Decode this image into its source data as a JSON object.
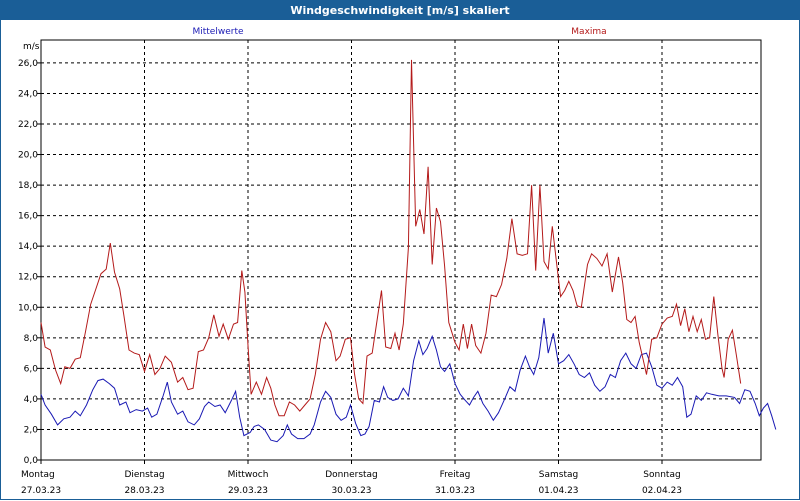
{
  "window": {
    "title": "Windgeschwindigkeit [m/s] skaliert"
  },
  "colors": {
    "mean": "#1a1ab4",
    "max": "#b41a1a",
    "titlebar": "#1a5e97",
    "grid": "#000000"
  },
  "chart_data": {
    "type": "line",
    "title": "Windgeschwindigkeit [m/s] skaliert",
    "ylabel": "m/s",
    "ylim": [
      0,
      27.5
    ],
    "yticks": [
      "0,0",
      "2,0",
      "4,0",
      "6,0",
      "8,0",
      "10,0",
      "12,0",
      "14,0",
      "16,0",
      "18,0",
      "20,0",
      "22,0",
      "24,0",
      "26,0"
    ],
    "xlim": [
      0,
      7
    ],
    "days": [
      {
        "name": "Montag",
        "date": "27.03.23"
      },
      {
        "name": "Dienstag",
        "date": "28.03.23"
      },
      {
        "name": "Mittwoch",
        "date": "29.03.23"
      },
      {
        "name": "Donnerstag",
        "date": "30.03.23"
      },
      {
        "name": "Freitag",
        "date": "31.03.23"
      },
      {
        "name": "Samstag",
        "date": "01.04.23"
      },
      {
        "name": "Sonntag",
        "date": "02.04.23"
      }
    ],
    "grid": true,
    "series": [
      {
        "name": "Mittelwerte",
        "color": "#1a1ab4",
        "points": [
          [
            0,
            4.3
          ],
          [
            0.04,
            3.6
          ],
          [
            0.1,
            3.0
          ],
          [
            0.16,
            2.3
          ],
          [
            0.22,
            2.7
          ],
          [
            0.28,
            2.8
          ],
          [
            0.33,
            3.2
          ],
          [
            0.38,
            2.9
          ],
          [
            0.44,
            3.6
          ],
          [
            0.5,
            4.6
          ],
          [
            0.55,
            5.2
          ],
          [
            0.6,
            5.3
          ],
          [
            0.66,
            5.0
          ],
          [
            0.71,
            4.7
          ],
          [
            0.76,
            3.6
          ],
          [
            0.82,
            3.8
          ],
          [
            0.86,
            3.1
          ],
          [
            0.92,
            3.3
          ],
          [
            0.98,
            3.2
          ],
          [
            1.03,
            3.4
          ],
          [
            1.07,
            2.8
          ],
          [
            1.12,
            3.0
          ],
          [
            1.18,
            4.2
          ],
          [
            1.22,
            5.1
          ],
          [
            1.26,
            3.8
          ],
          [
            1.32,
            3.0
          ],
          [
            1.37,
            3.2
          ],
          [
            1.42,
            2.5
          ],
          [
            1.48,
            2.3
          ],
          [
            1.53,
            2.7
          ],
          [
            1.58,
            3.5
          ],
          [
            1.62,
            3.8
          ],
          [
            1.68,
            3.5
          ],
          [
            1.73,
            3.6
          ],
          [
            1.78,
            3.1
          ],
          [
            1.84,
            3.9
          ],
          [
            1.88,
            4.5
          ],
          [
            1.92,
            2.8
          ],
          [
            1.96,
            1.6
          ],
          [
            2.02,
            1.8
          ],
          [
            2.06,
            2.2
          ],
          [
            2.1,
            2.3
          ],
          [
            2.16,
            2.0
          ],
          [
            2.22,
            1.3
          ],
          [
            2.28,
            1.2
          ],
          [
            2.34,
            1.6
          ],
          [
            2.38,
            2.3
          ],
          [
            2.42,
            1.7
          ],
          [
            2.48,
            1.4
          ],
          [
            2.54,
            1.4
          ],
          [
            2.6,
            1.7
          ],
          [
            2.64,
            2.3
          ],
          [
            2.7,
            3.8
          ],
          [
            2.75,
            4.5
          ],
          [
            2.8,
            4.1
          ],
          [
            2.85,
            3.0
          ],
          [
            2.9,
            2.6
          ],
          [
            2.95,
            2.8
          ],
          [
            2.99,
            3.6
          ],
          [
            3.04,
            2.4
          ],
          [
            3.09,
            1.6
          ],
          [
            3.13,
            1.7
          ],
          [
            3.17,
            2.2
          ],
          [
            3.22,
            3.9
          ],
          [
            3.27,
            3.8
          ],
          [
            3.31,
            4.8
          ],
          [
            3.35,
            4.1
          ],
          [
            3.4,
            3.9
          ],
          [
            3.45,
            4.0
          ],
          [
            3.5,
            4.7
          ],
          [
            3.55,
            4.2
          ],
          [
            3.6,
            6.5
          ],
          [
            3.65,
            7.8
          ],
          [
            3.69,
            6.9
          ],
          [
            3.73,
            7.3
          ],
          [
            3.78,
            8.1
          ],
          [
            3.82,
            7.2
          ],
          [
            3.86,
            6.1
          ],
          [
            3.9,
            5.8
          ],
          [
            3.95,
            6.3
          ],
          [
            4.0,
            5.0
          ],
          [
            4.05,
            4.3
          ],
          [
            4.1,
            3.9
          ],
          [
            4.14,
            3.6
          ],
          [
            4.18,
            4.1
          ],
          [
            4.22,
            4.5
          ],
          [
            4.27,
            3.7
          ],
          [
            4.32,
            3.2
          ],
          [
            4.37,
            2.6
          ],
          [
            4.42,
            3.1
          ],
          [
            4.48,
            4.0
          ],
          [
            4.53,
            4.8
          ],
          [
            4.58,
            4.5
          ],
          [
            4.63,
            5.9
          ],
          [
            4.68,
            6.8
          ],
          [
            4.72,
            6.1
          ],
          [
            4.76,
            5.6
          ],
          [
            4.81,
            6.7
          ],
          [
            4.86,
            9.3
          ],
          [
            4.9,
            7.0
          ],
          [
            4.95,
            8.3
          ],
          [
            5.0,
            6.3
          ],
          [
            5.05,
            6.5
          ],
          [
            5.1,
            6.9
          ],
          [
            5.15,
            6.3
          ],
          [
            5.2,
            5.6
          ],
          [
            5.25,
            5.4
          ],
          [
            5.3,
            5.7
          ],
          [
            5.35,
            4.9
          ],
          [
            5.4,
            4.5
          ],
          [
            5.45,
            4.8
          ],
          [
            5.5,
            5.6
          ],
          [
            5.55,
            5.4
          ],
          [
            5.6,
            6.5
          ],
          [
            5.65,
            7.0
          ],
          [
            5.7,
            6.3
          ],
          [
            5.75,
            6.0
          ],
          [
            5.8,
            6.9
          ],
          [
            5.85,
            7.0
          ],
          [
            5.9,
            6.1
          ],
          [
            5.95,
            4.9
          ],
          [
            6.0,
            4.7
          ],
          [
            6.05,
            5.1
          ],
          [
            6.1,
            4.9
          ],
          [
            6.15,
            5.4
          ],
          [
            6.2,
            4.8
          ],
          [
            6.24,
            2.8
          ],
          [
            6.28,
            3.0
          ],
          [
            6.33,
            4.2
          ],
          [
            6.38,
            3.9
          ],
          [
            6.43,
            4.4
          ],
          [
            6.48,
            4.3
          ],
          [
            6.55,
            4.2
          ],
          [
            6.62,
            4.2
          ],
          [
            6.7,
            4.1
          ],
          [
            6.75,
            3.7
          ],
          [
            6.8,
            4.6
          ],
          [
            6.85,
            4.5
          ],
          [
            6.9,
            3.7
          ],
          [
            6.94,
            2.9
          ],
          [
            6.98,
            3.4
          ],
          [
            7.02,
            3.7
          ],
          [
            7.06,
            2.9
          ],
          [
            7.1,
            2.0
          ]
        ]
      },
      {
        "name": "Maxima",
        "color": "#b41a1a",
        "points": [
          [
            0,
            9.0
          ],
          [
            0.04,
            7.4
          ],
          [
            0.09,
            7.2
          ],
          [
            0.14,
            5.9
          ],
          [
            0.19,
            5.0
          ],
          [
            0.23,
            6.1
          ],
          [
            0.28,
            6.0
          ],
          [
            0.33,
            6.6
          ],
          [
            0.38,
            6.7
          ],
          [
            0.43,
            8.4
          ],
          [
            0.48,
            10.2
          ],
          [
            0.53,
            11.2
          ],
          [
            0.58,
            12.2
          ],
          [
            0.63,
            12.5
          ],
          [
            0.67,
            14.2
          ],
          [
            0.71,
            12.3
          ],
          [
            0.76,
            11.2
          ],
          [
            0.8,
            9.5
          ],
          [
            0.85,
            7.2
          ],
          [
            0.9,
            7.0
          ],
          [
            0.95,
            6.9
          ],
          [
            1.0,
            5.8
          ],
          [
            1.05,
            6.9
          ],
          [
            1.1,
            5.6
          ],
          [
            1.15,
            6.0
          ],
          [
            1.2,
            6.8
          ],
          [
            1.26,
            6.4
          ],
          [
            1.32,
            5.1
          ],
          [
            1.37,
            5.4
          ],
          [
            1.42,
            4.6
          ],
          [
            1.47,
            4.7
          ],
          [
            1.52,
            7.1
          ],
          [
            1.57,
            7.2
          ],
          [
            1.62,
            8.0
          ],
          [
            1.67,
            9.5
          ],
          [
            1.72,
            8.1
          ],
          [
            1.76,
            8.9
          ],
          [
            1.81,
            7.9
          ],
          [
            1.86,
            8.9
          ],
          [
            1.9,
            9.0
          ],
          [
            1.94,
            12.4
          ],
          [
            1.97,
            11.0
          ],
          [
            2.0,
            7.5
          ],
          [
            2.03,
            4.3
          ],
          [
            2.08,
            5.1
          ],
          [
            2.13,
            4.3
          ],
          [
            2.18,
            5.4
          ],
          [
            2.22,
            4.7
          ],
          [
            2.26,
            3.6
          ],
          [
            2.3,
            2.9
          ],
          [
            2.35,
            2.9
          ],
          [
            2.4,
            3.8
          ],
          [
            2.45,
            3.6
          ],
          [
            2.5,
            3.2
          ],
          [
            2.55,
            3.6
          ],
          [
            2.6,
            4.0
          ],
          [
            2.65,
            5.6
          ],
          [
            2.7,
            7.9
          ],
          [
            2.75,
            9.0
          ],
          [
            2.8,
            8.4
          ],
          [
            2.85,
            6.5
          ],
          [
            2.89,
            6.8
          ],
          [
            2.94,
            7.9
          ],
          [
            2.99,
            8.0
          ],
          [
            3.03,
            5.6
          ],
          [
            3.07,
            4.0
          ],
          [
            3.11,
            3.7
          ],
          [
            3.15,
            6.8
          ],
          [
            3.2,
            7.0
          ],
          [
            3.25,
            9.3
          ],
          [
            3.29,
            11.1
          ],
          [
            3.33,
            7.4
          ],
          [
            3.38,
            7.3
          ],
          [
            3.42,
            8.3
          ],
          [
            3.46,
            7.2
          ],
          [
            3.5,
            8.9
          ],
          [
            3.55,
            13.9
          ],
          [
            3.58,
            26.2
          ],
          [
            3.62,
            15.3
          ],
          [
            3.66,
            16.4
          ],
          [
            3.7,
            14.8
          ],
          [
            3.74,
            19.2
          ],
          [
            3.78,
            12.8
          ],
          [
            3.82,
            16.5
          ],
          [
            3.86,
            15.6
          ],
          [
            3.9,
            12.7
          ],
          [
            3.94,
            9.0
          ],
          [
            4.0,
            7.7
          ],
          [
            4.04,
            7.2
          ],
          [
            4.08,
            8.9
          ],
          [
            4.12,
            7.3
          ],
          [
            4.16,
            8.9
          ],
          [
            4.2,
            7.5
          ],
          [
            4.25,
            7.0
          ],
          [
            4.3,
            8.3
          ],
          [
            4.35,
            10.8
          ],
          [
            4.4,
            10.7
          ],
          [
            4.45,
            11.5
          ],
          [
            4.5,
            13.2
          ],
          [
            4.55,
            15.8
          ],
          [
            4.6,
            13.5
          ],
          [
            4.65,
            13.4
          ],
          [
            4.7,
            13.5
          ],
          [
            4.74,
            18.0
          ],
          [
            4.78,
            12.4
          ],
          [
            4.82,
            18.0
          ],
          [
            4.86,
            13.0
          ],
          [
            4.9,
            12.5
          ],
          [
            4.94,
            15.3
          ],
          [
            4.98,
            13.0
          ],
          [
            5.02,
            10.7
          ],
          [
            5.06,
            11.1
          ],
          [
            5.1,
            11.7
          ],
          [
            5.14,
            11.1
          ],
          [
            5.18,
            10.1
          ],
          [
            5.22,
            10.0
          ],
          [
            5.28,
            12.8
          ],
          [
            5.32,
            13.5
          ],
          [
            5.37,
            13.2
          ],
          [
            5.42,
            12.7
          ],
          [
            5.47,
            13.5
          ],
          [
            5.52,
            11.0
          ],
          [
            5.58,
            13.3
          ],
          [
            5.62,
            11.6
          ],
          [
            5.66,
            9.2
          ],
          [
            5.7,
            9.0
          ],
          [
            5.74,
            9.4
          ],
          [
            5.78,
            7.7
          ],
          [
            5.82,
            6.5
          ],
          [
            5.85,
            5.6
          ],
          [
            5.9,
            7.9
          ],
          [
            5.95,
            8.0
          ],
          [
            6.0,
            8.9
          ],
          [
            6.05,
            9.3
          ],
          [
            6.1,
            9.4
          ],
          [
            6.14,
            10.2
          ],
          [
            6.18,
            8.8
          ],
          [
            6.22,
            9.9
          ],
          [
            6.26,
            8.4
          ],
          [
            6.3,
            9.4
          ],
          [
            6.34,
            8.4
          ],
          [
            6.38,
            9.2
          ],
          [
            6.42,
            7.9
          ],
          [
            6.46,
            8.0
          ],
          [
            6.5,
            10.7
          ],
          [
            6.54,
            8.2
          ],
          [
            6.58,
            6.0
          ],
          [
            6.6,
            5.4
          ],
          [
            6.64,
            7.9
          ],
          [
            6.68,
            8.5
          ],
          [
            6.72,
            6.8
          ],
          [
            6.76,
            5.0
          ]
        ]
      }
    ]
  }
}
